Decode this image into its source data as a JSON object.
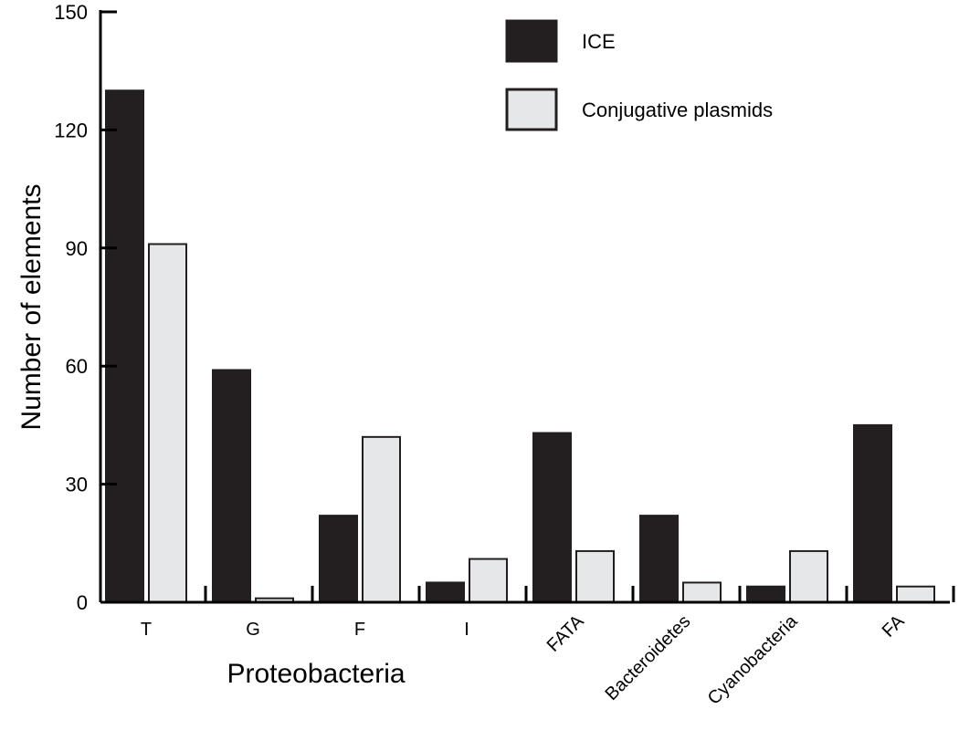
{
  "chart_data": {
    "type": "bar",
    "categories": [
      "T",
      "G",
      "F",
      "I",
      "FATA",
      "Bacteroidetes",
      "Cyanobacteria",
      "FA"
    ],
    "series": [
      {
        "name": "ICE",
        "color": "#231f20",
        "values": [
          130,
          59,
          22,
          5,
          43,
          22,
          4,
          45
        ]
      },
      {
        "name": "Conjugative plasmids",
        "color": "#e6e7e8",
        "values": [
          91,
          1,
          42,
          11,
          13,
          5,
          13,
          4
        ]
      }
    ],
    "ylabel": "Number of elements",
    "group_label": "Proteobacteria",
    "ylim": [
      0,
      150
    ],
    "yticks": [
      0,
      30,
      60,
      90,
      120,
      150
    ],
    "grid": false,
    "legend": "top-right"
  }
}
